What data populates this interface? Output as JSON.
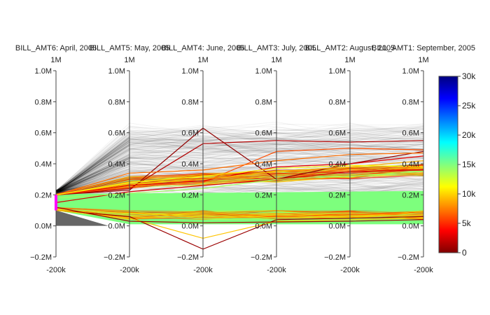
{
  "chart_data": {
    "type": "parcoords",
    "dimensions": [
      {
        "label": "BILL_AMT6: April, 2005",
        "range": [
          -200000,
          1000000
        ],
        "range_top_label": "1M",
        "range_bottom_label": "-200k"
      },
      {
        "label": "BILL_AMT5: May, 2005",
        "range": [
          -200000,
          1000000
        ],
        "range_top_label": "1M",
        "range_bottom_label": "-200k"
      },
      {
        "label": "BILL_AMT4: June, 2005",
        "range": [
          -200000,
          1000000
        ],
        "range_top_label": "1M",
        "range_bottom_label": "-200k"
      },
      {
        "label": "BILL_AMT3: July, 2005",
        "range": [
          -200000,
          1000000
        ],
        "range_top_label": "1M",
        "range_bottom_label": "-200k"
      },
      {
        "label": "BILL_AMT2: August, 2005",
        "range": [
          -200000,
          1000000
        ],
        "range_top_label": "1M",
        "range_bottom_label": "-200k"
      },
      {
        "label": "BILL_AMT1: September, 2005",
        "range": [
          -200000,
          1000000
        ],
        "range_top_label": "1M",
        "range_bottom_label": "-200k"
      }
    ],
    "y_ticks": [
      {
        "value": -200000,
        "label": "−0.2M"
      },
      {
        "value": 0,
        "label": "0.0M"
      },
      {
        "value": 200000,
        "label": "0.2M"
      },
      {
        "value": 400000,
        "label": "0.4M"
      },
      {
        "value": 600000,
        "label": "0.6M"
      },
      {
        "value": 800000,
        "label": "0.8M"
      },
      {
        "value": 1000000,
        "label": "1.0M"
      }
    ],
    "constraint_range": {
      "dimension": 0,
      "range": [
        100000,
        200000
      ],
      "color": "#ff00ff"
    },
    "sample_lines": [
      {
        "values": [
          200000,
          230000,
          630000,
          300000,
          400000,
          480000
        ],
        "color_value": 500
      },
      {
        "values": [
          200000,
          240000,
          530000,
          550000,
          540000,
          550000
        ],
        "color_value": 1500
      },
      {
        "values": [
          200000,
          250000,
          280000,
          480000,
          500000,
          490000
        ],
        "color_value": 6000
      },
      {
        "values": [
          200000,
          340000,
          360000,
          420000,
          460000,
          470000
        ],
        "color_value": 7000
      },
      {
        "values": [
          200000,
          260000,
          290000,
          380000,
          400000,
          450000
        ],
        "color_value": 3000
      },
      {
        "values": [
          200000,
          270000,
          300000,
          350000,
          380000,
          420000
        ],
        "color_value": 9000
      },
      {
        "values": [
          200000,
          280000,
          320000,
          370000,
          390000,
          380000
        ],
        "color_value": 11000
      },
      {
        "values": [
          150000,
          220000,
          260000,
          300000,
          350000,
          360000
        ],
        "color_value": 2500
      },
      {
        "values": [
          100000,
          60000,
          -150000,
          40000,
          50000,
          60000
        ],
        "color_value": 800
      },
      {
        "values": [
          100000,
          50000,
          -80000,
          30000,
          40000,
          50000
        ],
        "color_value": 9500
      },
      {
        "values": [
          120000,
          30000,
          20000,
          25000,
          30000,
          40000
        ],
        "color_value": 1000
      },
      {
        "values": [
          180000,
          210000,
          240000,
          300000,
          320000,
          350000
        ],
        "color_value": 14000
      }
    ],
    "colorbar": {
      "range": [
        0,
        30000
      ],
      "ticks": [
        {
          "value": 0,
          "label": "0"
        },
        {
          "value": 5000,
          "label": "5k"
        },
        {
          "value": 10000,
          "label": "10k"
        },
        {
          "value": 15000,
          "label": "15k"
        },
        {
          "value": 20000,
          "label": "20k"
        },
        {
          "value": 25000,
          "label": "25k"
        },
        {
          "value": 30000,
          "label": "30k"
        }
      ],
      "colorscale": [
        "#800000",
        "#ff0000",
        "#ff8000",
        "#ffff00",
        "#80ff80",
        "#00ffff",
        "#0080ff",
        "#0000ff",
        "#000080"
      ]
    }
  }
}
